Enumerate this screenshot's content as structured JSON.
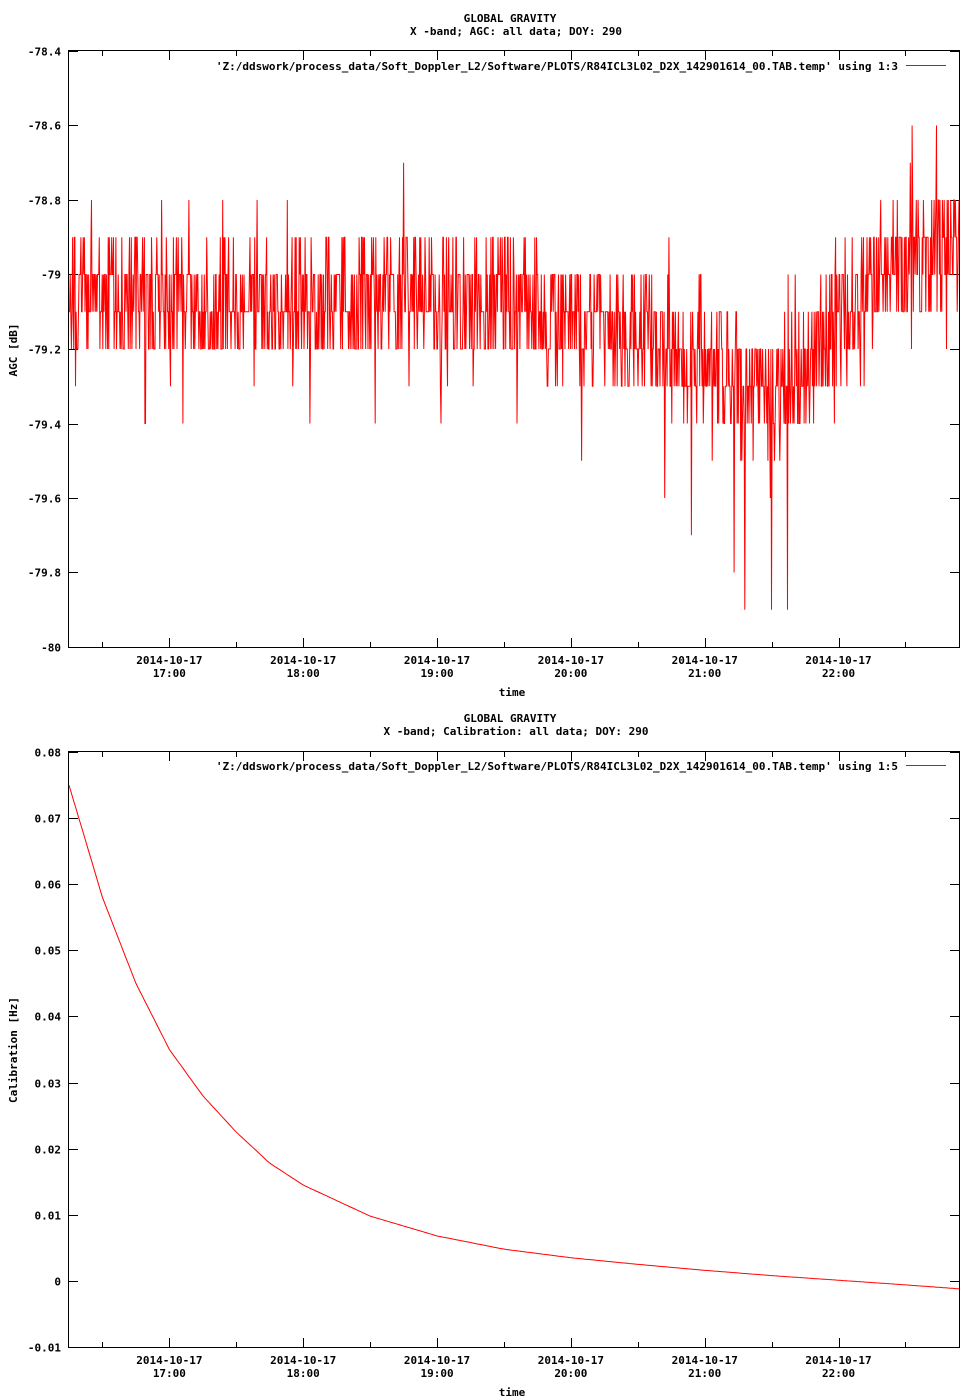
{
  "chart_data": [
    {
      "type": "line",
      "title": "GLOBAL GRAVITY",
      "subtitle": "X -band; AGC: all data; DOY: 290",
      "xlabel": "time",
      "ylabel": "AGC [dB]",
      "ylim": [
        -80,
        -78.4
      ],
      "yticks": [
        "-78.4",
        "-78.6",
        "-78.8",
        "-79",
        "-79.2",
        "-79.4",
        "-79.6",
        "-79.8",
        "-80"
      ],
      "ytick_values": [
        -78.4,
        -78.6,
        -78.8,
        -79,
        -79.2,
        -79.4,
        -79.6,
        -79.8,
        -80
      ],
      "xlim_hours": [
        16.25,
        22.9
      ],
      "xtick_hours": [
        17,
        18,
        19,
        20,
        21,
        22
      ],
      "xtick_dates": [
        "2014-10-17",
        "2014-10-17",
        "2014-10-17",
        "2014-10-17",
        "2014-10-17",
        "2014-10-17"
      ],
      "xtick_times": [
        "17:00",
        "18:00",
        "19:00",
        "20:00",
        "21:00",
        "22:00"
      ],
      "grid": false,
      "legend_position": "top-right",
      "series": [
        {
          "name": "'Z:/ddswork/process_data/Soft_Doppler_L2/Software/PLOTS/R84ICL3L02_D2X_142901614_00.TAB.temp' using 1:3",
          "color": "#ff0000",
          "trend": {
            "x_hours": [
              16.25,
              17.0,
              18.0,
              19.0,
              19.5,
              20.0,
              20.5,
              21.0,
              21.25,
              21.5,
              21.75,
              22.0,
              22.25,
              22.5,
              22.9
            ],
            "y": [
              -79.05,
              -79.07,
              -79.08,
              -79.05,
              -79.07,
              -79.12,
              -79.15,
              -79.22,
              -79.3,
              -79.33,
              -79.27,
              -79.12,
              -79.02,
              -78.95,
              -78.92
            ]
          },
          "spread": 0.1,
          "y_max": -78.6,
          "y_min": -79.9,
          "extremes": [
            {
              "x_hours": 16.82,
              "y": -79.4
            },
            {
              "x_hours": 17.1,
              "y": -79.4
            },
            {
              "x_hours": 18.05,
              "y": -79.4
            },
            {
              "x_hours": 18.75,
              "y": -78.7
            },
            {
              "x_hours": 19.03,
              "y": -79.4
            },
            {
              "x_hours": 20.08,
              "y": -79.5
            },
            {
              "x_hours": 20.7,
              "y": -79.6
            },
            {
              "x_hours": 20.9,
              "y": -79.7
            },
            {
              "x_hours": 21.22,
              "y": -79.8
            },
            {
              "x_hours": 21.3,
              "y": -79.9
            },
            {
              "x_hours": 21.5,
              "y": -79.9
            },
            {
              "x_hours": 21.62,
              "y": -79.9
            },
            {
              "x_hours": 22.55,
              "y": -78.6
            },
            {
              "x_hours": 22.73,
              "y": -78.6
            }
          ]
        }
      ]
    },
    {
      "type": "line",
      "title": "GLOBAL GRAVITY",
      "subtitle": "X -band; Calibration: all data; DOY: 290",
      "xlabel": "time",
      "ylabel": "Calibration [Hz]",
      "ylim": [
        -0.01,
        0.08
      ],
      "yticks": [
        "0.08",
        "0.07",
        "0.06",
        "0.05",
        "0.04",
        "0.03",
        "0.02",
        "0.01",
        "0",
        "-0.01"
      ],
      "ytick_values": [
        0.08,
        0.07,
        0.06,
        0.05,
        0.04,
        0.03,
        0.02,
        0.01,
        0,
        -0.01
      ],
      "xlim_hours": [
        16.25,
        22.9
      ],
      "xtick_hours": [
        17,
        18,
        19,
        20,
        21,
        22
      ],
      "xtick_dates": [
        "2014-10-17",
        "2014-10-17",
        "2014-10-17",
        "2014-10-17",
        "2014-10-17",
        "2014-10-17"
      ],
      "xtick_times": [
        "17:00",
        "18:00",
        "19:00",
        "20:00",
        "21:00",
        "22:00"
      ],
      "grid": false,
      "legend_position": "top-right",
      "series": [
        {
          "name": "'Z:/ddswork/process_data/Soft_Doppler_L2/Software/PLOTS/R84ICL3L02_D2X_142901614_00.TAB.temp' using 1:5",
          "color": "#ff0000",
          "x_hours": [
            16.25,
            16.5,
            16.75,
            17.0,
            17.25,
            17.5,
            17.75,
            18.0,
            18.5,
            19.0,
            19.5,
            20.0,
            20.5,
            21.0,
            21.5,
            22.0,
            22.5,
            22.9
          ],
          "y": [
            0.075,
            0.058,
            0.045,
            0.035,
            0.028,
            0.0225,
            0.0178,
            0.0145,
            0.0098,
            0.0068,
            0.0048,
            0.0035,
            0.0025,
            0.0016,
            0.0008,
            0.0001,
            -0.0006,
            -0.0012
          ]
        }
      ]
    }
  ]
}
